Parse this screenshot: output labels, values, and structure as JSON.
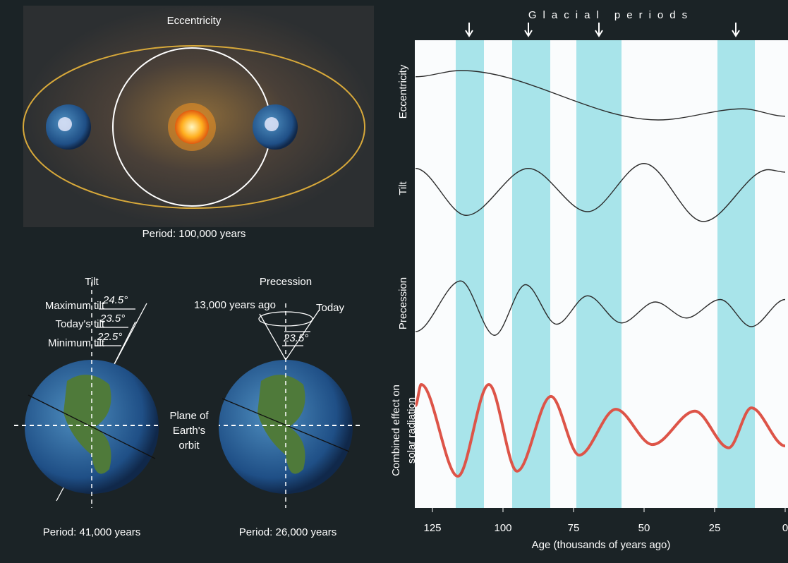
{
  "left_panel": {
    "eccentricity": {
      "title": "Eccentricity",
      "period": "Period: 100,000 years"
    },
    "tilt": {
      "title": "Tilt",
      "labels": [
        "Maximum tilt",
        "Today's tilt",
        "Minimum tilt"
      ],
      "angles": [
        "24.5°",
        "23.5°",
        "22.5°"
      ],
      "period": "Period: 41,000 years"
    },
    "plane": [
      "Plane of",
      "Earth's",
      "orbit"
    ],
    "precession": {
      "title": "Precession",
      "past": "13,000 years ago",
      "today": "Today",
      "angle": "23.5°",
      "period": "Period: 26,000 years"
    }
  },
  "chart_data": {
    "type": "line",
    "glacial_label": "Glacial periods",
    "glacial_bands": [
      [
        116.75,
        106.75
      ],
      [
        96.75,
        83.25
      ],
      [
        74,
        58
      ],
      [
        24,
        10.75
      ]
    ],
    "glacial_arrows": [
      112,
      91,
      66,
      17.5
    ],
    "band_color": "#a8e4ea",
    "xlabel": "Age (thousands of years ago)",
    "xlim": [
      131.25,
      -1
    ],
    "xticks": [
      125,
      100,
      75,
      50,
      25,
      0
    ],
    "series": [
      {
        "name": [
          "Eccentricity"
        ],
        "color": "#2b2b2b",
        "x": [
          131,
          115,
          45,
          15,
          0
        ],
        "values": [
          0.75,
          1.0,
          -1.0,
          -0.55,
          -0.85
        ]
      },
      {
        "name": [
          "Tilt"
        ],
        "color": "#2b2b2b",
        "x": [
          131,
          113,
          91,
          70,
          50,
          29,
          6,
          0
        ],
        "values": [
          0.95,
          -0.95,
          0.95,
          -0.8,
          1.15,
          -1.2,
          0.9,
          0.8
        ]
      },
      {
        "name": [
          "Precession"
        ],
        "color": "#2b2b2b",
        "x": [
          131,
          115,
          103,
          92,
          81,
          70,
          58,
          46,
          35,
          23,
          12,
          0
        ],
        "values": [
          -1.0,
          1.05,
          -1.15,
          0.9,
          -0.7,
          0.45,
          -0.65,
          0.2,
          -0.45,
          0.3,
          -0.8,
          0.3
        ]
      },
      {
        "name": [
          "Combined effect on",
          "solar radiation"
        ],
        "color": "#dd5448",
        "x": [
          131,
          129,
          116,
          105,
          95,
          83,
          73,
          60,
          47,
          32,
          20,
          12,
          0
        ],
        "values": [
          0.54,
          1.0,
          -1.0,
          1.0,
          -0.89,
          0.74,
          -0.54,
          0.46,
          -0.31,
          0.42,
          -0.38,
          0.49,
          -0.34
        ]
      }
    ]
  }
}
